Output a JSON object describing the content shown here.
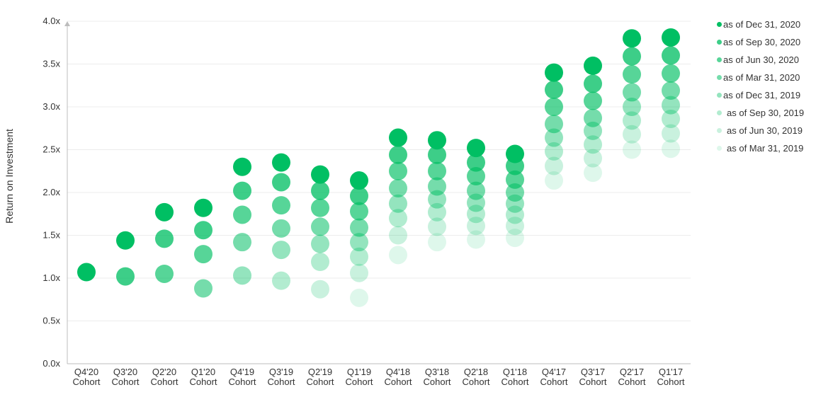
{
  "chart_data": {
    "type": "scatter",
    "title": "",
    "xlabel": "",
    "ylabel": "Return on Investment",
    "ylim": [
      0,
      4.0
    ],
    "yticks": [
      "0.0x",
      "0.5x",
      "1.0x",
      "1.5x",
      "2.0x",
      "2.5x",
      "3.0x",
      "3.5x",
      "4.0x"
    ],
    "grid": true,
    "legend_position": "right",
    "categories": [
      {
        "line1": "Q4'20",
        "line2": "Cohort"
      },
      {
        "line1": "Q3'20",
        "line2": "Cohort"
      },
      {
        "line1": "Q2'20",
        "line2": "Cohort"
      },
      {
        "line1": "Q1'20",
        "line2": "Cohort"
      },
      {
        "line1": "Q4'19",
        "line2": "Cohort"
      },
      {
        "line1": "Q3'19",
        "line2": "Cohort"
      },
      {
        "line1": "Q2'19",
        "line2": "Cohort"
      },
      {
        "line1": "Q1'19",
        "line2": "Cohort"
      },
      {
        "line1": "Q4'18",
        "line2": "Cohort"
      },
      {
        "line1": "Q3'18",
        "line2": "Cohort"
      },
      {
        "line1": "Q2'18",
        "line2": "Cohort"
      },
      {
        "line1": "Q1'18",
        "line2": "Cohort"
      },
      {
        "line1": "Q4'17",
        "line2": "Cohort"
      },
      {
        "line1": "Q3'17",
        "line2": "Cohort"
      },
      {
        "line1": "Q2'17",
        "line2": "Cohort"
      },
      {
        "line1": "Q1'17",
        "line2": "Cohort"
      }
    ],
    "series": [
      {
        "name": "as of Dec 31, 2020",
        "color": "#00bf63",
        "opacity": 1.0,
        "values": [
          1.07,
          1.44,
          1.77,
          1.82,
          2.3,
          2.35,
          2.21,
          2.14,
          2.64,
          2.61,
          2.52,
          2.45,
          3.4,
          3.48,
          3.8,
          3.81
        ]
      },
      {
        "name": "as of Sep 30, 2020",
        "color": "#00bf63",
        "opacity": 0.76,
        "values": [
          null,
          1.02,
          1.46,
          1.56,
          2.02,
          2.12,
          2.02,
          1.96,
          2.44,
          2.44,
          2.35,
          2.31,
          3.2,
          3.27,
          3.59,
          3.6
        ]
      },
      {
        "name": "as of Jun 30, 2020",
        "color": "#00bf63",
        "opacity": 0.66,
        "values": [
          null,
          null,
          1.05,
          1.28,
          1.74,
          1.85,
          1.82,
          1.78,
          2.25,
          2.25,
          2.19,
          2.15,
          3.0,
          3.07,
          3.38,
          3.39
        ]
      },
      {
        "name": "as of Mar 31, 2020",
        "color": "#00bf63",
        "opacity": 0.54,
        "values": [
          null,
          null,
          null,
          0.88,
          1.42,
          1.58,
          1.6,
          1.59,
          2.05,
          2.07,
          2.02,
          2.0,
          2.8,
          2.87,
          3.17,
          3.19
        ]
      },
      {
        "name": "as of Dec 31, 2019",
        "color": "#00bf63",
        "opacity": 0.42,
        "values": [
          null,
          null,
          null,
          null,
          1.03,
          1.33,
          1.4,
          1.42,
          1.87,
          1.92,
          1.88,
          1.87,
          2.64,
          2.72,
          3.0,
          3.02
        ]
      },
      {
        "name": "as of Sep 30, 2019",
        "color": "#00bf63",
        "opacity": 0.3,
        "values": [
          null,
          null,
          null,
          null,
          null,
          0.97,
          1.19,
          1.25,
          1.7,
          1.77,
          1.75,
          1.74,
          2.48,
          2.56,
          2.84,
          2.86
        ]
      },
      {
        "name": "as of Jun 30, 2019",
        "color": "#00bf63",
        "opacity": 0.21,
        "values": [
          null,
          null,
          null,
          null,
          null,
          null,
          0.87,
          1.06,
          1.5,
          1.6,
          1.61,
          1.61,
          2.31,
          2.4,
          2.68,
          2.69
        ]
      },
      {
        "name": "as of Mar 31, 2019",
        "color": "#00bf63",
        "opacity": 0.13,
        "values": [
          null,
          null,
          null,
          null,
          null,
          null,
          null,
          0.77,
          1.27,
          1.42,
          1.45,
          1.47,
          2.14,
          2.23,
          2.5,
          2.51
        ]
      }
    ]
  }
}
